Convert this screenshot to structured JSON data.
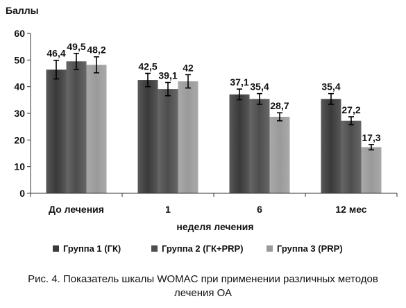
{
  "chart_data": {
    "type": "bar",
    "ylabel": "Баллы",
    "xlabel": "неделя лечения",
    "categories": [
      "До лечения",
      "1",
      "6",
      "12 мес"
    ],
    "ylim": [
      0,
      60
    ],
    "yticks": [
      0,
      10,
      20,
      30,
      40,
      50,
      60
    ],
    "grid": false,
    "legend_position": "bottom",
    "series": [
      {
        "name": "Группа 1 (ГК)",
        "color": "#3a3a3a",
        "values": [
          46.4,
          42.5,
          37.1,
          35.4
        ],
        "labels": [
          "46,4",
          "42,5",
          "37,1",
          "35,4"
        ],
        "errors": [
          3.5,
          2.5,
          2.0,
          2.0
        ]
      },
      {
        "name": "Группа 2 (ГК+PRP)",
        "color": "#4d4d4d",
        "values": [
          49.5,
          39.1,
          35.4,
          27.2
        ],
        "labels": [
          "49,5",
          "39,1",
          "35,4",
          "27,2"
        ],
        "errors": [
          3.0,
          2.5,
          2.0,
          1.5
        ]
      },
      {
        "name": "Группа 3 (PRP)",
        "color": "#9a9a9a",
        "values": [
          48.2,
          42,
          28.7,
          17.3
        ],
        "labels": [
          "48,2",
          "42",
          "28,7",
          "17,3"
        ],
        "errors": [
          3.0,
          2.5,
          1.5,
          1.0
        ]
      }
    ]
  },
  "caption": {
    "line1": "Рис. 4. Показатель шкалы WOMAC при применении различных методов",
    "line2": "лечения ОА"
  }
}
